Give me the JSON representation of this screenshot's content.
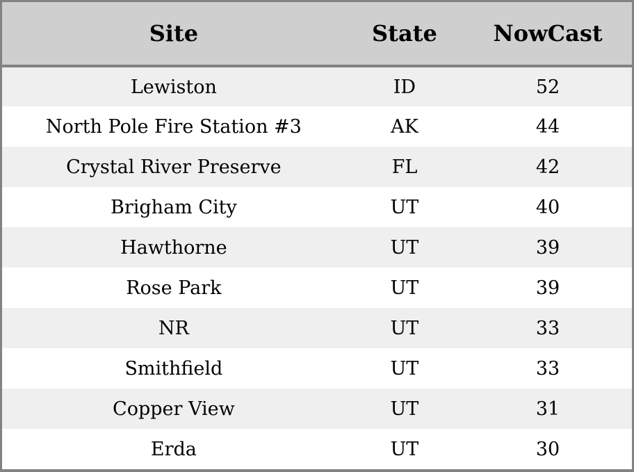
{
  "chart_data": {
    "type": "table",
    "columns": [
      "Site",
      "State",
      "NowCast"
    ],
    "rows": [
      [
        "Lewiston",
        "ID",
        "52"
      ],
      [
        "North Pole Fire Station #3",
        "AK",
        "44"
      ],
      [
        "Crystal River Preserve",
        "FL",
        "42"
      ],
      [
        "Brigham City",
        "UT",
        "40"
      ],
      [
        "Hawthorne",
        "UT",
        "39"
      ],
      [
        "Rose Park",
        "UT",
        "39"
      ],
      [
        "NR",
        "UT",
        "33"
      ],
      [
        "Smithfield",
        "UT",
        "33"
      ],
      [
        "Copper View",
        "UT",
        "31"
      ],
      [
        "Erda",
        "UT",
        "30"
      ]
    ]
  },
  "colors": {
    "header_bg": "#cfcfcf",
    "stripe": "#efefef",
    "border": "#828282",
    "text": "#000000"
  }
}
